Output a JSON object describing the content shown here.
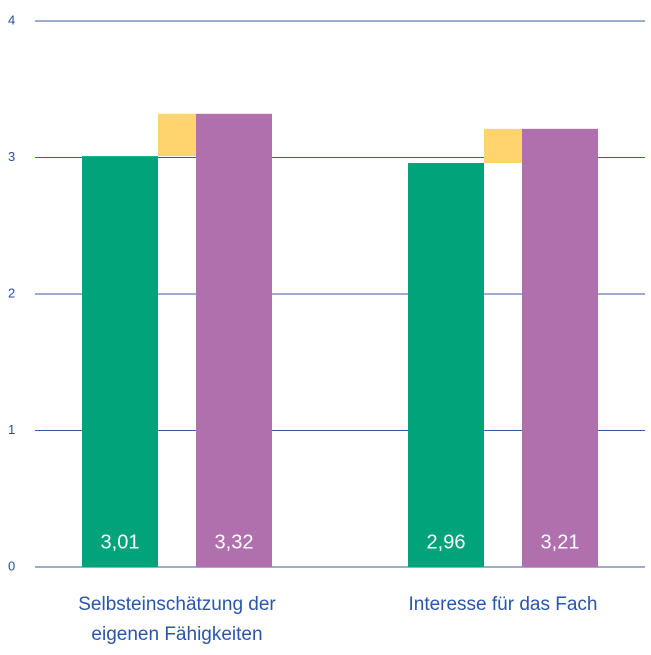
{
  "chart_data": {
    "type": "bar",
    "categories": [
      "Selbsteinschätzung der eigenen Fähigkeiten",
      "Interesse für das Fach"
    ],
    "series": [
      {
        "color": "#00a37a",
        "values": [
          3.01,
          2.96
        ],
        "value_labels": [
          "3,01",
          "2,96"
        ]
      },
      {
        "color": "#b070ae",
        "values": [
          3.32,
          3.21
        ],
        "value_labels": [
          "3,32",
          "3,21"
        ]
      }
    ],
    "difference_color": "#ffd36e",
    "ylim": [
      0,
      4
    ],
    "yticks": [
      0,
      1,
      2,
      3,
      4
    ],
    "grid": true
  }
}
